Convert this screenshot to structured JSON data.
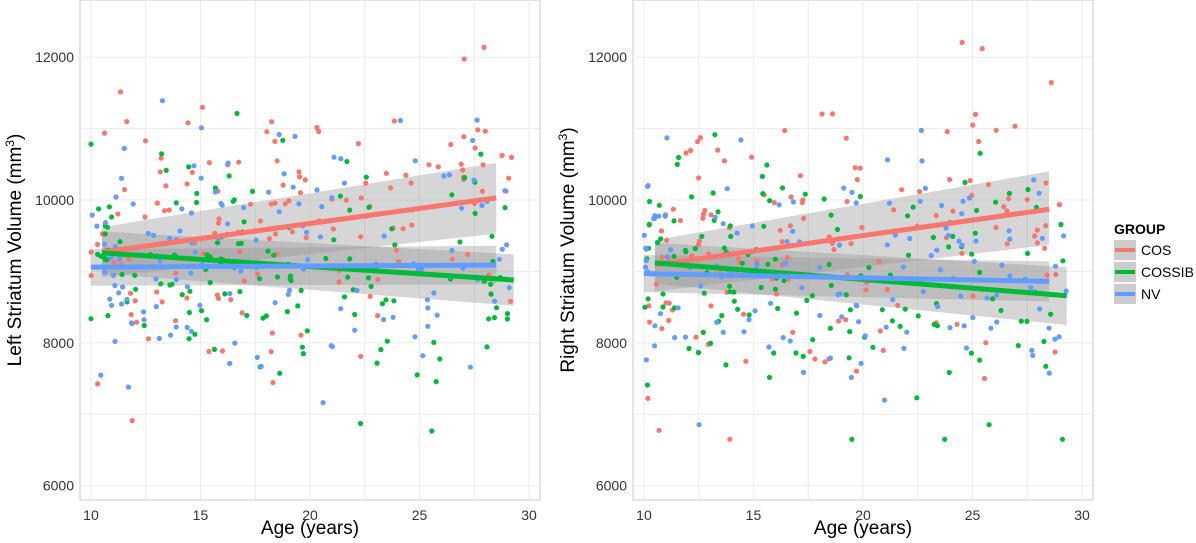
{
  "colors": {
    "COS": "#F8766D",
    "COSSIB": "#00BA38",
    "NV": "#619CFF",
    "band": "#999999",
    "grid": "#EBEBEB"
  },
  "chart_data": [
    {
      "type": "scatter",
      "xlabel": "Age (years)",
      "ylabel": "Left Striatum Volume (mm",
      "ylabel_sup": "3",
      "ylabel_close": ")",
      "xlim": [
        9.5,
        30.5
      ],
      "ylim": [
        5800,
        12800
      ],
      "x_ticks": [
        "10",
        "15",
        "20",
        "25",
        "30"
      ],
      "y_ticks": [
        "6000",
        "8000",
        "10000",
        "12000"
      ],
      "grid": true,
      "trend_lines": [
        {
          "name": "COS",
          "x": [
            10.5,
            28.5
          ],
          "y": [
            9270,
            10030
          ],
          "band_lower": [
            8920,
            9530
          ],
          "band_upper": [
            9620,
            10520
          ]
        },
        {
          "name": "COSSIB",
          "x": [
            10.5,
            29.3
          ],
          "y": [
            9260,
            8880
          ],
          "band_lower": [
            8970,
            8520
          ],
          "band_upper": [
            9560,
            9240
          ]
        },
        {
          "name": "NV",
          "x": [
            10.0,
            28.5
          ],
          "y": [
            9060,
            9090
          ],
          "band_lower": [
            8800,
            8820
          ],
          "band_upper": [
            9310,
            9360
          ]
        }
      ],
      "seed": 11
    },
    {
      "type": "scatter",
      "xlabel": "Age (years)",
      "ylabel": "Right Striatum Volume (mm",
      "ylabel_sup": "3",
      "ylabel_close": ")",
      "xlim": [
        9.5,
        30.5
      ],
      "ylim": [
        5800,
        12800
      ],
      "x_ticks": [
        "10",
        "15",
        "20",
        "25",
        "30"
      ],
      "y_ticks": [
        "6000",
        "8000",
        "10000",
        "12000"
      ],
      "grid": true,
      "trend_lines": [
        {
          "name": "COS",
          "x": [
            10.5,
            28.5
          ],
          "y": [
            9090,
            9870
          ],
          "band_lower": [
            8720,
            9370
          ],
          "band_upper": [
            9440,
            10400
          ]
        },
        {
          "name": "COSSIB",
          "x": [
            10.5,
            29.3
          ],
          "y": [
            9120,
            8660
          ],
          "band_lower": [
            8830,
            8250
          ],
          "band_upper": [
            9400,
            9060
          ]
        },
        {
          "name": "NV",
          "x": [
            10.0,
            28.5
          ],
          "y": [
            8970,
            8860
          ],
          "band_lower": [
            8710,
            8580
          ],
          "band_upper": [
            9230,
            9140
          ]
        }
      ],
      "seed": 29
    }
  ],
  "legend": {
    "title": "GROUP",
    "placement": "right",
    "items": [
      {
        "label": "COS",
        "color": "#F8766D"
      },
      {
        "label": "COSSIB",
        "color": "#00BA38"
      },
      {
        "label": "NV",
        "color": "#619CFF"
      }
    ]
  }
}
